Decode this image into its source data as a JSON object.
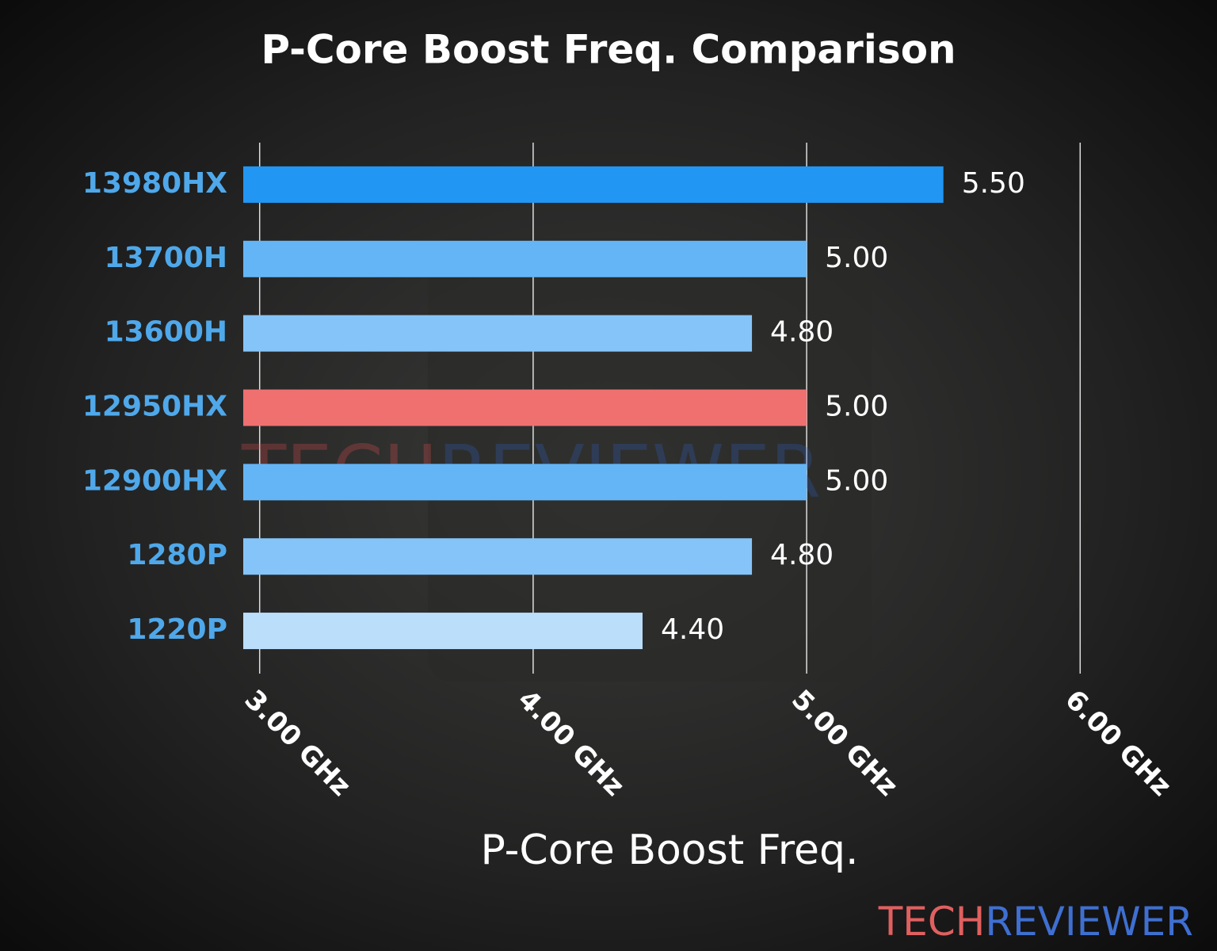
{
  "chart_data": {
    "type": "barh",
    "title": "P-Core Boost Freq. Comparison",
    "x_label": "P-Core Boost Freq.",
    "categories": [
      "13980HX",
      "13700H",
      "13600H",
      "12950HX",
      "12900HX",
      "1280P",
      "1220P"
    ],
    "values": [
      5.5,
      5.0,
      4.8,
      5.0,
      5.0,
      4.8,
      4.4
    ],
    "value_labels": [
      "5.50",
      "5.00",
      "4.80",
      "5.00",
      "5.00",
      "4.80",
      "4.40"
    ],
    "colors": [
      "#2196f3",
      "#64b5f6",
      "#85c4f8",
      "#f07070",
      "#64b5f6",
      "#85c4f8",
      "#bbdefb"
    ],
    "xlim": [
      2.94,
      6.06
    ],
    "xticks": [
      {
        "value": 3,
        "label": "3.00 GHz"
      },
      {
        "value": 4,
        "label": "4.00 GHz"
      },
      {
        "value": 5,
        "label": "5.00 GHz"
      },
      {
        "value": 6,
        "label": "6.00 GHz"
      }
    ],
    "grid": true
  },
  "branding": [
    "TECH",
    "REVIEWER"
  ]
}
